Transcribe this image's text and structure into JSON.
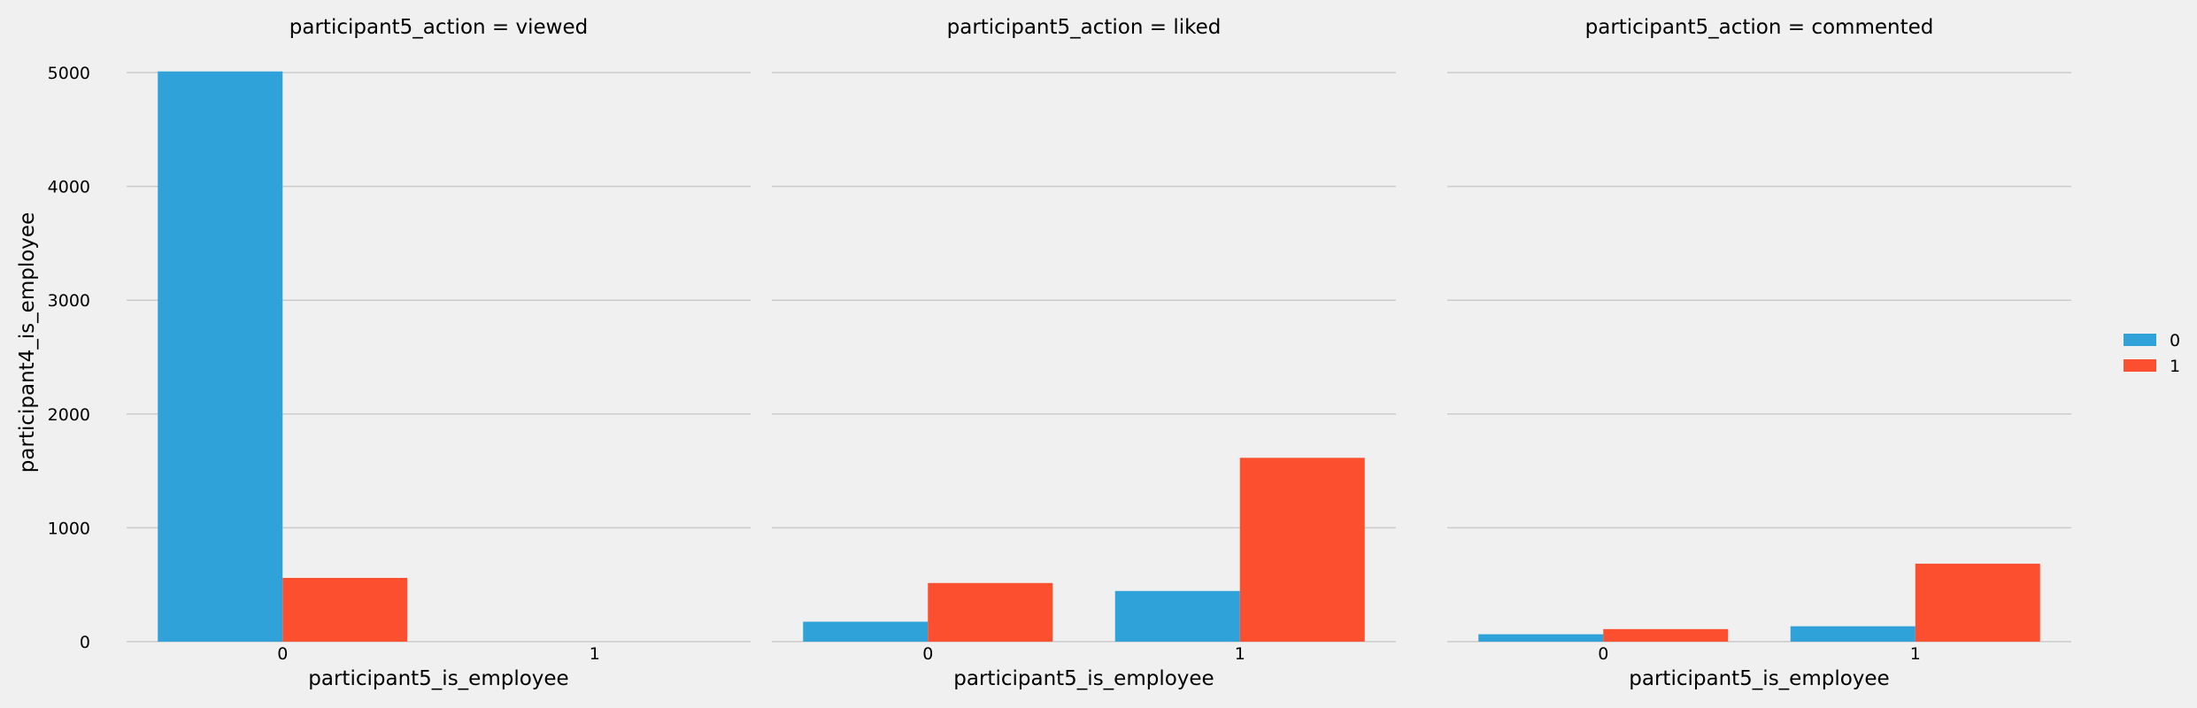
{
  "chart_data": {
    "type": "bar",
    "ylabel": "participant4_is_employee",
    "ylim": [
      0,
      5000
    ],
    "yticks": [
      0,
      1000,
      2000,
      3000,
      4000,
      5000
    ],
    "grid": true,
    "legend_placement": "right",
    "categories": [
      "0",
      "1"
    ],
    "series_names": [
      "0",
      "1"
    ],
    "colors": {
      "0": "#30a2da",
      "1": "#fc4f30"
    },
    "panels": [
      {
        "title": "participant5_action = viewed",
        "xlabel": "participant5_is_employee",
        "series": [
          {
            "name": "0",
            "values": [
              5010,
              0
            ]
          },
          {
            "name": "1",
            "values": [
              560,
              0
            ]
          }
        ]
      },
      {
        "title": "participant5_action = liked",
        "xlabel": "participant5_is_employee",
        "series": [
          {
            "name": "0",
            "values": [
              175,
              445
            ]
          },
          {
            "name": "1",
            "values": [
              515,
              1615
            ]
          }
        ]
      },
      {
        "title": "participant5_action = commented",
        "xlabel": "participant5_is_employee",
        "series": [
          {
            "name": "0",
            "values": [
              65,
              135
            ]
          },
          {
            "name": "1",
            "values": [
              110,
              685
            ]
          }
        ]
      }
    ]
  }
}
